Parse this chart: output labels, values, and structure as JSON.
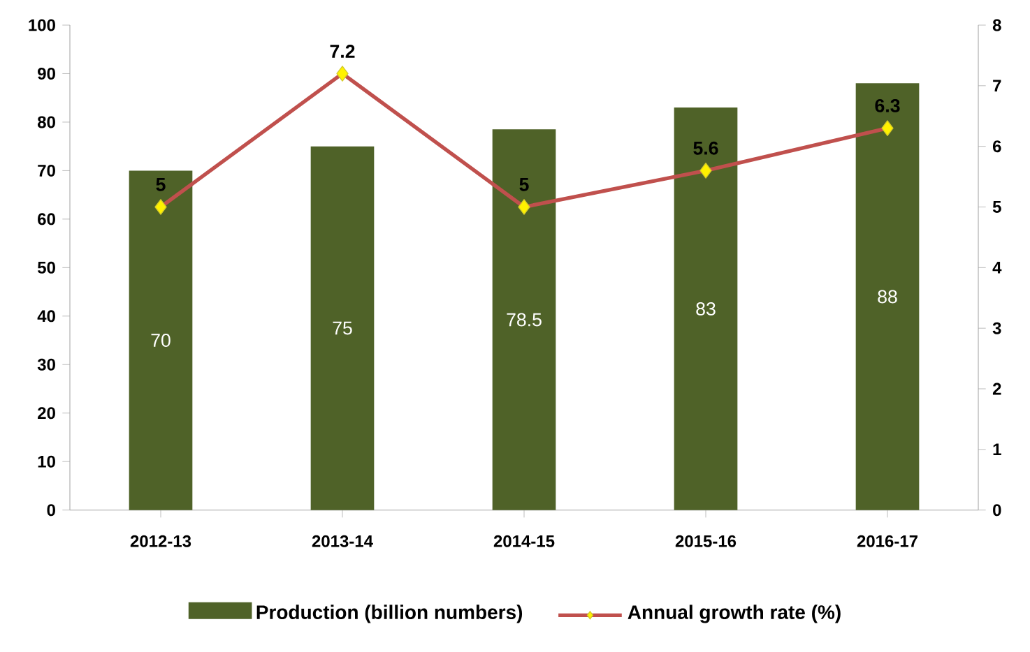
{
  "chart_data": {
    "type": "bar",
    "categories": [
      "2012-13",
      "2013-14",
      "2014-15",
      "2015-16",
      "2016-17"
    ],
    "series": [
      {
        "name": "Production (billion numbers)",
        "color": "#4f6228",
        "values": [
          70,
          75,
          78.5,
          83,
          88
        ]
      },
      {
        "name": "Annual growth rate (%)",
        "type": "line",
        "axis": "y2",
        "color": "#c0504d",
        "values": [
          5,
          7.2,
          5,
          5.6,
          6.3
        ]
      }
    ],
    "ylim": [
      0,
      100
    ],
    "yticks": [
      0,
      10,
      20,
      30,
      40,
      50,
      60,
      70,
      80,
      90,
      100
    ],
    "y2lim": [
      0,
      8
    ],
    "y2ticks": [
      0,
      1,
      2,
      3,
      4,
      5,
      6,
      7,
      8
    ],
    "marker": "diamond",
    "data_labels": true,
    "legend": "bottom",
    "grid": false
  }
}
